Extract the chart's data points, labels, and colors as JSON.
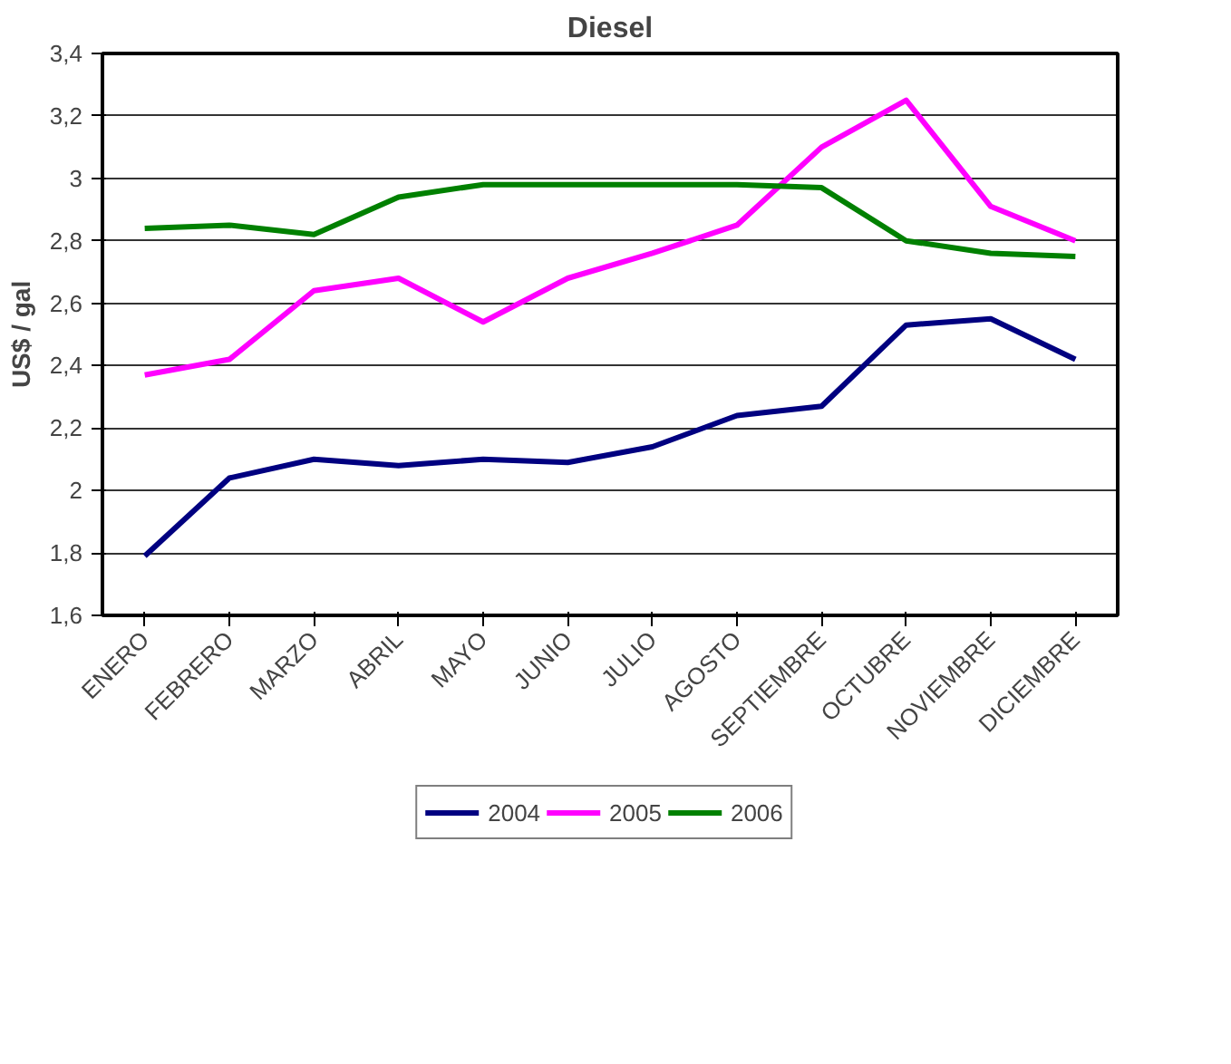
{
  "chart_data": {
    "type": "line",
    "title": "Diesel",
    "ylabel": "US$ / gal",
    "categories": [
      "ENERO",
      "FEBRERO",
      "MARZO",
      "ABRIL",
      "MAYO",
      "JUNIO",
      "JULIO",
      "AGOSTO",
      "SEPTIEMBRE",
      "OCTUBRE",
      "NOVIEMBRE",
      "DICIEMBRE"
    ],
    "series": [
      {
        "name": "2004",
        "color": "#000080",
        "values": [
          1.79,
          2.04,
          2.1,
          2.08,
          2.1,
          2.09,
          2.14,
          2.24,
          2.27,
          2.53,
          2.55,
          2.42
        ]
      },
      {
        "name": "2005",
        "color": "#ff00ff",
        "values": [
          2.37,
          2.42,
          2.64,
          2.68,
          2.54,
          2.68,
          2.76,
          2.85,
          3.1,
          3.25,
          2.91,
          2.8
        ]
      },
      {
        "name": "2006",
        "color": "#008000",
        "values": [
          2.84,
          2.85,
          2.82,
          2.94,
          2.98,
          2.98,
          2.98,
          2.98,
          2.97,
          2.8,
          2.76,
          2.75
        ]
      }
    ],
    "ylim": [
      1.6,
      3.4
    ],
    "yticks": [
      {
        "value": 1.6,
        "label": "1,6"
      },
      {
        "value": 1.8,
        "label": "1,8"
      },
      {
        "value": 2,
        "label": "2"
      },
      {
        "value": 2.2,
        "label": "2,2"
      },
      {
        "value": 2.4,
        "label": "2,4"
      },
      {
        "value": 2.6,
        "label": "2,6"
      },
      {
        "value": 2.8,
        "label": "2,8"
      },
      {
        "value": 3,
        "label": "3"
      },
      {
        "value": 3.2,
        "label": "3,2"
      },
      {
        "value": 3.4,
        "label": "3,4"
      }
    ],
    "grid": "y",
    "legend": "bottom",
    "marker": "none",
    "line_style": "solid"
  }
}
